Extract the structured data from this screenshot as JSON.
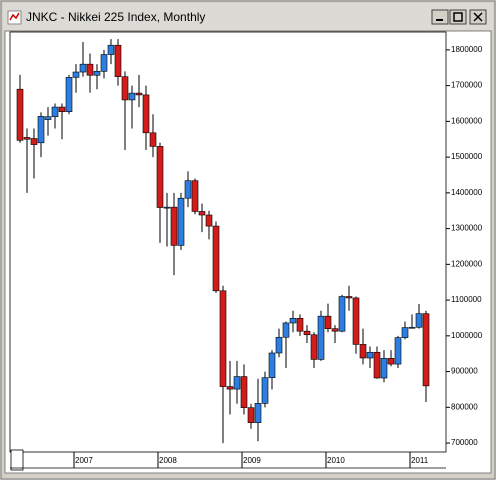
{
  "chart_data": {
    "type": "candlestick",
    "title": "JNKC - Nikkei 225 Index, Monthly",
    "categories": [
      null,
      null,
      null,
      null,
      null,
      null,
      null,
      null,
      "2007",
      null,
      null,
      null,
      null,
      null,
      null,
      null,
      null,
      null,
      null,
      null,
      "2008",
      null,
      null,
      null,
      null,
      null,
      null,
      null,
      null,
      null,
      null,
      null,
      "2009",
      null,
      null,
      null,
      null,
      null,
      null,
      null,
      null,
      null,
      null,
      null,
      "2010",
      null,
      null,
      null,
      null,
      null,
      null,
      null,
      null,
      null,
      null,
      null,
      "2011",
      null,
      null
    ],
    "open": [
      1690000,
      1555000,
      1552000,
      1540000,
      1605000,
      1613000,
      1640000,
      1627000,
      1723000,
      1738000,
      1760000,
      1729000,
      1740000,
      1787000,
      1813000,
      1725000,
      1660000,
      1679000,
      1674000,
      1568000,
      1530000,
      1359000,
      1360000,
      1253000,
      1385000,
      1434000,
      1348000,
      1338000,
      1307000,
      1126000,
      858000,
      851000,
      886000,
      799000,
      757000,
      811000,
      883000,
      952000,
      996000,
      1036000,
      1049000,
      1013000,
      1003000,
      934000,
      1055000,
      1020000,
      1013000,
      1110000,
      1106000,
      976000,
      938000,
      954000,
      882000,
      937000,
      921000,
      995000,
      1023000,
      1024000,
      1062000
    ],
    "high": [
      1730000,
      1580000,
      1580000,
      1625000,
      1640000,
      1650000,
      1650000,
      1730000,
      1760000,
      1822000,
      1790000,
      1760000,
      1800000,
      1830000,
      1830000,
      1740000,
      1700000,
      1730000,
      1700000,
      1620000,
      1540000,
      1400000,
      1400000,
      1400000,
      1460000,
      1440000,
      1370000,
      1350000,
      1320000,
      1140000,
      930000,
      930000,
      920000,
      810000,
      880000,
      900000,
      960000,
      1020000,
      1040000,
      1070000,
      1060000,
      1030000,
      1010000,
      1070000,
      1090000,
      1030000,
      1115000,
      1140000,
      1110000,
      1020000,
      970000,
      970000,
      960000,
      960000,
      1000000,
      1040000,
      1060000,
      1089000,
      1070000
    ],
    "low": [
      1540000,
      1400000,
      1440000,
      1500000,
      1560000,
      1580000,
      1550000,
      1620000,
      1680000,
      1725000,
      1680000,
      1690000,
      1720000,
      1760000,
      1700000,
      1520000,
      1580000,
      1640000,
      1520000,
      1500000,
      1260000,
      1250000,
      1170000,
      1240000,
      1360000,
      1340000,
      1290000,
      1270000,
      1120000,
      700000,
      780000,
      810000,
      780000,
      740000,
      705000,
      800000,
      850000,
      940000,
      910000,
      1010000,
      1000000,
      980000,
      910000,
      930000,
      1010000,
      980000,
      1010000,
      1070000,
      950000,
      920000,
      910000,
      880000,
      870000,
      915000,
      910000,
      990000,
      1020000,
      1020000,
      815000
    ],
    "close": [
      1547000,
      1550000,
      1535000,
      1614000,
      1613000,
      1640000,
      1627000,
      1723000,
      1738000,
      1760000,
      1729000,
      1740000,
      1787000,
      1813000,
      1725000,
      1660000,
      1679000,
      1674000,
      1568000,
      1530000,
      1359000,
      1360000,
      1253000,
      1385000,
      1434000,
      1348000,
      1338000,
      1307000,
      1126000,
      858000,
      851000,
      886000,
      799000,
      757000,
      811000,
      883000,
      952000,
      996000,
      1036000,
      1049000,
      1013000,
      1003000,
      934000,
      1055000,
      1020000,
      1013000,
      1110000,
      1106000,
      976000,
      938000,
      954000,
      882000,
      937000,
      921000,
      995000,
      1023000,
      1024000,
      1062000,
      860000
    ],
    "up_color": "#2e7de0",
    "down_color": "#d21c1c",
    "ylim": [
      675000,
      1850000
    ],
    "yticks": [
      700000,
      800000,
      900000,
      1000000,
      1100000,
      1200000,
      1300000,
      1400000,
      1500000,
      1600000,
      1700000,
      1800000
    ]
  }
}
